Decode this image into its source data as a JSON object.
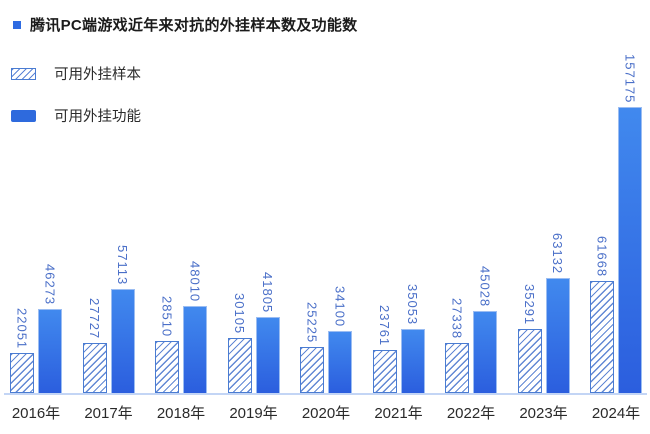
{
  "title": {
    "text": "腾讯PC端游戏近年来对抗的外挂样本数及功能数",
    "bullet_color": "#2e6be2"
  },
  "legend": {
    "position": "top-left",
    "items": [
      {
        "label": "可用外挂样本",
        "swatch": "hatched"
      },
      {
        "label": "可用外挂功能",
        "swatch": "solid"
      }
    ]
  },
  "colors": {
    "solid_bar_top": "#4189ee",
    "solid_bar_bottom": "#2b5ede",
    "solid_bar_border": "#9bbdf2",
    "hatch_line": "#6288d4",
    "hatch_border": "#4a7cd2",
    "value_label": "#4a6fc8",
    "year_label": "#2a2a2a",
    "axis_line": "#c3d5f5",
    "background": "#ffffff"
  },
  "chart_data": {
    "type": "bar",
    "title": "腾讯PC端游戏近年来对抗的外挂样本数及功能数",
    "categories": [
      "2016年",
      "2017年",
      "2018年",
      "2019年",
      "2020年",
      "2021年",
      "2022年",
      "2023年",
      "2024年"
    ],
    "series": [
      {
        "name": "可用外挂样本",
        "style": "hatched",
        "values": [
          22051,
          27727,
          28510,
          30105,
          25225,
          23761,
          27338,
          35291,
          61668
        ]
      },
      {
        "name": "可用外挂功能",
        "style": "solid",
        "values": [
          46273,
          57113,
          48010,
          41805,
          34100,
          35053,
          45028,
          63132,
          157175
        ]
      }
    ],
    "value_labels": "rotated-90-above-bars",
    "xlabel": "",
    "ylabel": "",
    "ylim": [
      0,
      160000
    ],
    "grid": false,
    "legend_position": "top-left"
  }
}
